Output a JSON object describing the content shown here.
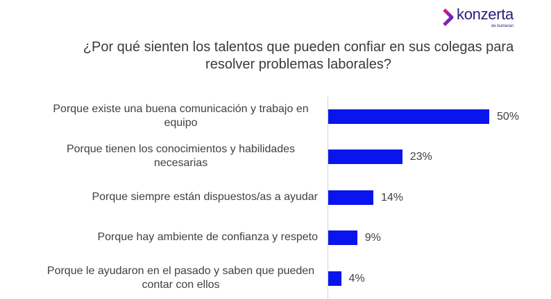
{
  "logo": {
    "brand": "konzerta",
    "sub": "de bumeran"
  },
  "chart_data": {
    "type": "bar",
    "orientation": "horizontal",
    "title": "¿Por qué sienten los talentos que pueden confiar en sus colegas para resolver problemas laborales?",
    "categories": [
      "Porque existe una buena comunicación y trabajo en equipo",
      "Porque tienen los conocimientos y habilidades necesarias",
      "Porque siempre están dispuestos/as a ayudar",
      "Porque hay ambiente de confianza y respeto",
      "Porque le ayudaron en el pasado y saben que pueden contar con ellos"
    ],
    "values": [
      50,
      23,
      14,
      9,
      4
    ],
    "value_labels": [
      "50%",
      "23%",
      "14%",
      "9%",
      "4%"
    ],
    "color": "#0a14ee"
  }
}
